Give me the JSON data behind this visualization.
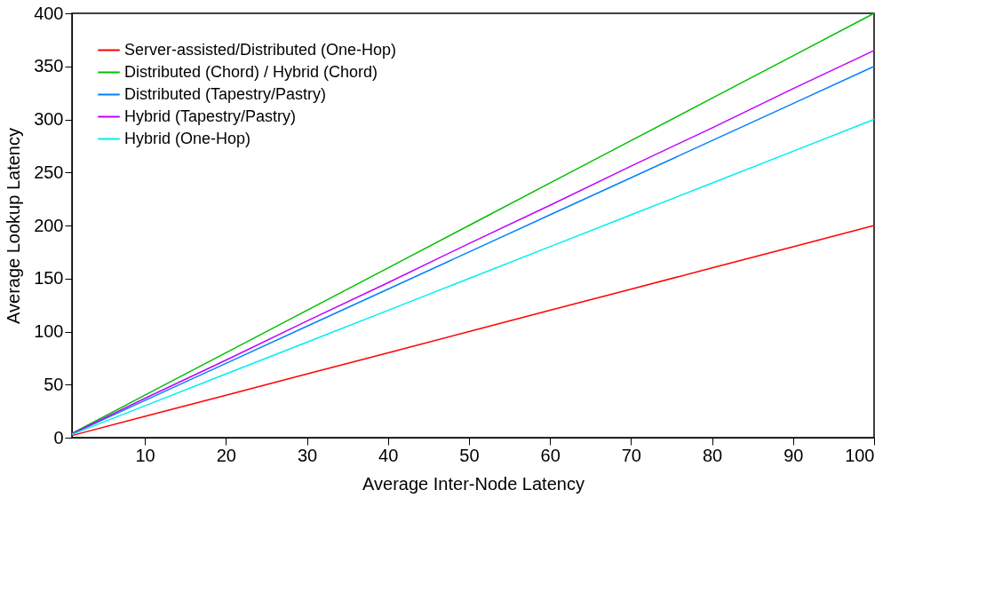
{
  "chart_data": {
    "type": "line",
    "xlabel": "Average Inter-Node Latency",
    "ylabel": "Average Lookup Latency",
    "x": [
      1,
      10,
      20,
      30,
      40,
      50,
      60,
      70,
      80,
      90,
      100
    ],
    "xlim": [
      1,
      100
    ],
    "xticks": [
      10,
      20,
      30,
      40,
      50,
      60,
      70,
      80,
      90,
      100
    ],
    "ylim": [
      0,
      400
    ],
    "yticks": [
      0,
      50,
      100,
      150,
      200,
      250,
      300,
      350,
      400
    ],
    "grid": false,
    "legend": "top left",
    "marker": "none",
    "line_style": "solid",
    "series": [
      {
        "name": "Server-assisted/Distributed (One-Hop)",
        "color": "#ff0000",
        "values": [
          2,
          20,
          40,
          60,
          80,
          100,
          120,
          140,
          160,
          180,
          200
        ]
      },
      {
        "name": "Distributed (Chord) / Hybrid (Chord)",
        "color": "#00c000",
        "values": [
          4,
          40,
          80,
          120,
          160,
          200,
          240,
          280,
          320,
          360,
          400
        ]
      },
      {
        "name": "Distributed (Tapestry/Pastry)",
        "color": "#0080ff",
        "values": [
          3.5,
          35,
          70,
          105,
          140,
          175,
          210,
          245,
          280,
          315,
          350
        ]
      },
      {
        "name": "Hybrid (Tapestry/Pastry)",
        "color": "#c000ff",
        "values": [
          3.7,
          37,
          73,
          110,
          146,
          183,
          219,
          256,
          292,
          329,
          365
        ]
      },
      {
        "name": "Hybrid (One-Hop)",
        "color": "#00eeee",
        "values": [
          3,
          30,
          60,
          90,
          120,
          150,
          180,
          210,
          240,
          270,
          300
        ]
      }
    ]
  }
}
